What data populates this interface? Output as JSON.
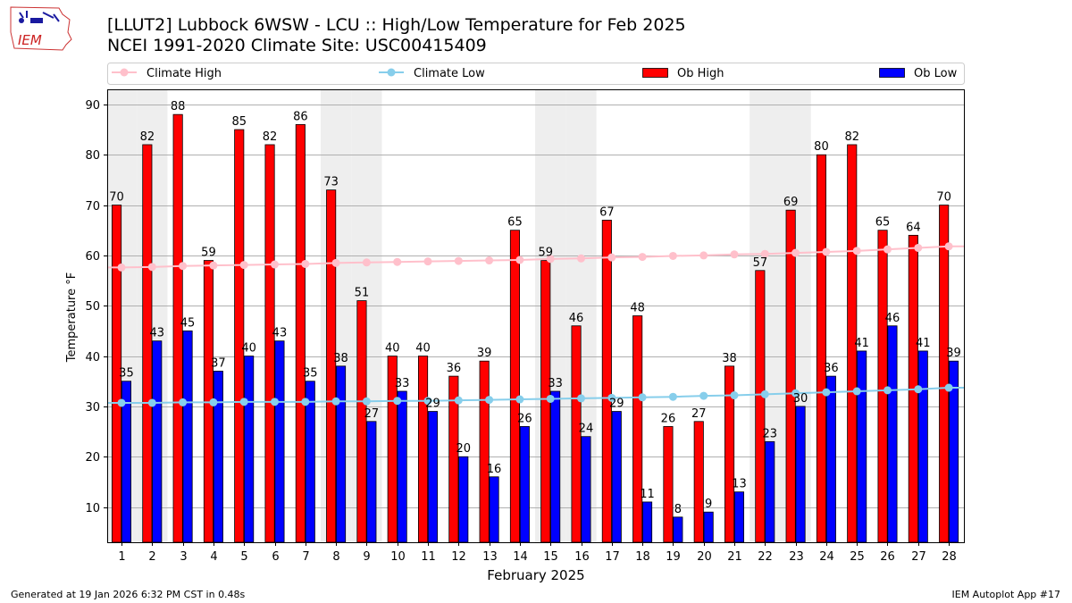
{
  "header": {
    "title_line1": "[LLUT2] Lubbock 6WSW - LCU :: High/Low Temperature for Feb 2025",
    "title_line2": "NCEI 1991-2020 Climate Site: USC00415409",
    "logo_text": "IEM"
  },
  "footer": {
    "generated": "Generated at 19 Jan 2026 6:32 PM CST in 0.48s",
    "app": "IEM Autoplot App #17"
  },
  "colors": {
    "ob_high": "#ff0000",
    "ob_low": "#0000ff",
    "climate_high": "#ffc0cb",
    "climate_low": "#87ceeb",
    "weekend_shade": "#eeeeee",
    "grid": "#b0b0b0"
  },
  "chart_data": {
    "type": "bar",
    "xlabel": "February 2025",
    "ylabel": "Temperature °F",
    "ylim": [
      3,
      93
    ],
    "yticks": [
      10,
      20,
      30,
      40,
      50,
      60,
      70,
      80,
      90
    ],
    "grid": "horizontal",
    "legend_position": "top",
    "categories": [
      "1",
      "2",
      "3",
      "4",
      "5",
      "6",
      "7",
      "8",
      "9",
      "10",
      "11",
      "12",
      "13",
      "14",
      "15",
      "16",
      "17",
      "18",
      "19",
      "20",
      "21",
      "22",
      "23",
      "24",
      "25",
      "26",
      "27",
      "28"
    ],
    "shaded_days": [
      1,
      2,
      8,
      9,
      15,
      16,
      22,
      23
    ],
    "series": [
      {
        "name": "Climate High",
        "kind": "line",
        "values": [
          57.6,
          57.7,
          57.9,
          58.0,
          58.1,
          58.2,
          58.3,
          58.5,
          58.6,
          58.7,
          58.8,
          58.9,
          59.0,
          59.1,
          59.3,
          59.4,
          59.6,
          59.7,
          59.9,
          60.0,
          60.2,
          60.3,
          60.5,
          60.7,
          60.9,
          61.2,
          61.5,
          61.8
        ]
      },
      {
        "name": "Climate Low",
        "kind": "line",
        "values": [
          30.7,
          30.7,
          30.8,
          30.8,
          30.9,
          30.9,
          30.9,
          31.0,
          31.0,
          31.1,
          31.1,
          31.2,
          31.3,
          31.4,
          31.5,
          31.6,
          31.7,
          31.8,
          31.9,
          32.1,
          32.2,
          32.4,
          32.6,
          32.8,
          33.0,
          33.2,
          33.4,
          33.7
        ]
      },
      {
        "name": "Ob High",
        "kind": "bar",
        "values": [
          70,
          82,
          88,
          59,
          85,
          82,
          86,
          73,
          51,
          40,
          40,
          36,
          39,
          65,
          59,
          46,
          67,
          48,
          26,
          27,
          38,
          57,
          69,
          80,
          82,
          65,
          64,
          70
        ]
      },
      {
        "name": "Ob Low",
        "kind": "bar",
        "values": [
          35,
          43,
          45,
          37,
          40,
          43,
          35,
          38,
          27,
          33,
          29,
          20,
          16,
          26,
          33,
          24,
          29,
          11,
          8,
          9,
          13,
          23,
          30,
          36,
          41,
          46,
          41,
          39
        ]
      }
    ]
  }
}
